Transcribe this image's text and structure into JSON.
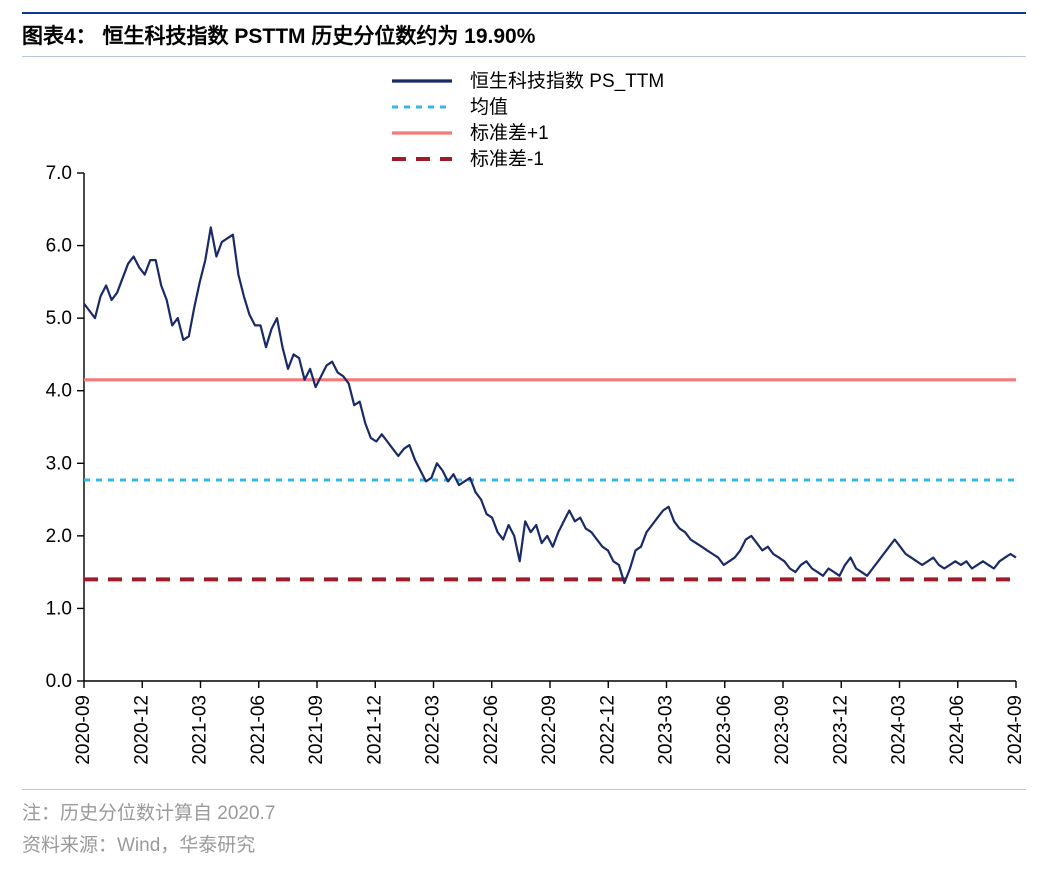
{
  "header": {
    "title": "图表4：  恒生科技指数 PSTTM 历史分位数约为 19.90%"
  },
  "chart": {
    "type": "line",
    "background_color": "#ffffff",
    "axis_color": "#000000",
    "axis_width": 1.4,
    "ylim": [
      0.0,
      7.0
    ],
    "ytick_step": 1.0,
    "yticks": [
      "0.0",
      "1.0",
      "2.0",
      "3.0",
      "4.0",
      "5.0",
      "6.0",
      "7.0"
    ],
    "xticks": [
      "2020-09",
      "2020-12",
      "2021-03",
      "2021-06",
      "2021-09",
      "2021-12",
      "2022-03",
      "2022-06",
      "2022-09",
      "2022-12",
      "2023-03",
      "2023-06",
      "2023-09",
      "2023-12",
      "2024-03",
      "2024-06",
      "2024-09"
    ],
    "tick_length": 7,
    "label_fontsize": 19,
    "legend": {
      "position": "top-center",
      "items": [
        {
          "label": "恒生科技指数 PS_TTM",
          "color": "#1a2a66",
          "dash": "solid",
          "width": 3.2
        },
        {
          "label": "均值",
          "color": "#34b7e4",
          "dash": "6,6",
          "width": 3
        },
        {
          "label": "标准差+1",
          "color": "#f47b7b",
          "dash": "solid",
          "width": 3.2
        },
        {
          "label": "标准差-1",
          "color": "#a01c28",
          "dash": "14,10",
          "width": 4
        }
      ]
    },
    "reference_lines": {
      "mean": 2.77,
      "plus1sd": 4.15,
      "minus1sd": 1.4
    },
    "series": {
      "name": "恒生科技指数 PS_TTM",
      "color": "#1a2a66",
      "width": 2.2,
      "values": [
        5.2,
        5.1,
        5.0,
        5.3,
        5.45,
        5.25,
        5.35,
        5.55,
        5.75,
        5.85,
        5.7,
        5.6,
        5.8,
        5.8,
        5.45,
        5.25,
        4.9,
        5.0,
        4.7,
        4.75,
        5.15,
        5.5,
        5.8,
        6.25,
        5.85,
        6.05,
        6.1,
        6.15,
        5.6,
        5.3,
        5.05,
        4.9,
        4.9,
        4.6,
        4.85,
        5.0,
        4.6,
        4.3,
        4.5,
        4.45,
        4.15,
        4.3,
        4.05,
        4.2,
        4.35,
        4.4,
        4.25,
        4.2,
        4.1,
        3.8,
        3.85,
        3.55,
        3.35,
        3.3,
        3.4,
        3.3,
        3.2,
        3.1,
        3.2,
        3.25,
        3.05,
        2.9,
        2.75,
        2.8,
        3.0,
        2.9,
        2.75,
        2.85,
        2.7,
        2.75,
        2.8,
        2.6,
        2.5,
        2.3,
        2.25,
        2.05,
        1.95,
        2.15,
        2.0,
        1.65,
        2.2,
        2.05,
        2.15,
        1.9,
        2.0,
        1.85,
        2.05,
        2.2,
        2.35,
        2.2,
        2.25,
        2.1,
        2.05,
        1.95,
        1.85,
        1.8,
        1.65,
        1.6,
        1.35,
        1.55,
        1.8,
        1.85,
        2.05,
        2.15,
        2.25,
        2.35,
        2.4,
        2.2,
        2.1,
        2.05,
        1.95,
        1.9,
        1.85,
        1.8,
        1.75,
        1.7,
        1.6,
        1.65,
        1.7,
        1.8,
        1.95,
        2.0,
        1.9,
        1.8,
        1.85,
        1.75,
        1.7,
        1.65,
        1.55,
        1.5,
        1.6,
        1.65,
        1.55,
        1.5,
        1.45,
        1.55,
        1.5,
        1.45,
        1.6,
        1.7,
        1.55,
        1.5,
        1.45,
        1.55,
        1.65,
        1.75,
        1.85,
        1.95,
        1.85,
        1.75,
        1.7,
        1.65,
        1.6,
        1.65,
        1.7,
        1.6,
        1.55,
        1.6,
        1.65,
        1.6,
        1.65,
        1.55,
        1.6,
        1.65,
        1.6,
        1.55,
        1.65,
        1.7,
        1.75,
        1.7
      ]
    }
  },
  "footer": {
    "note": "注：历史分位数计算自 2020.7",
    "source": "资料来源：Wind，华泰研究"
  }
}
